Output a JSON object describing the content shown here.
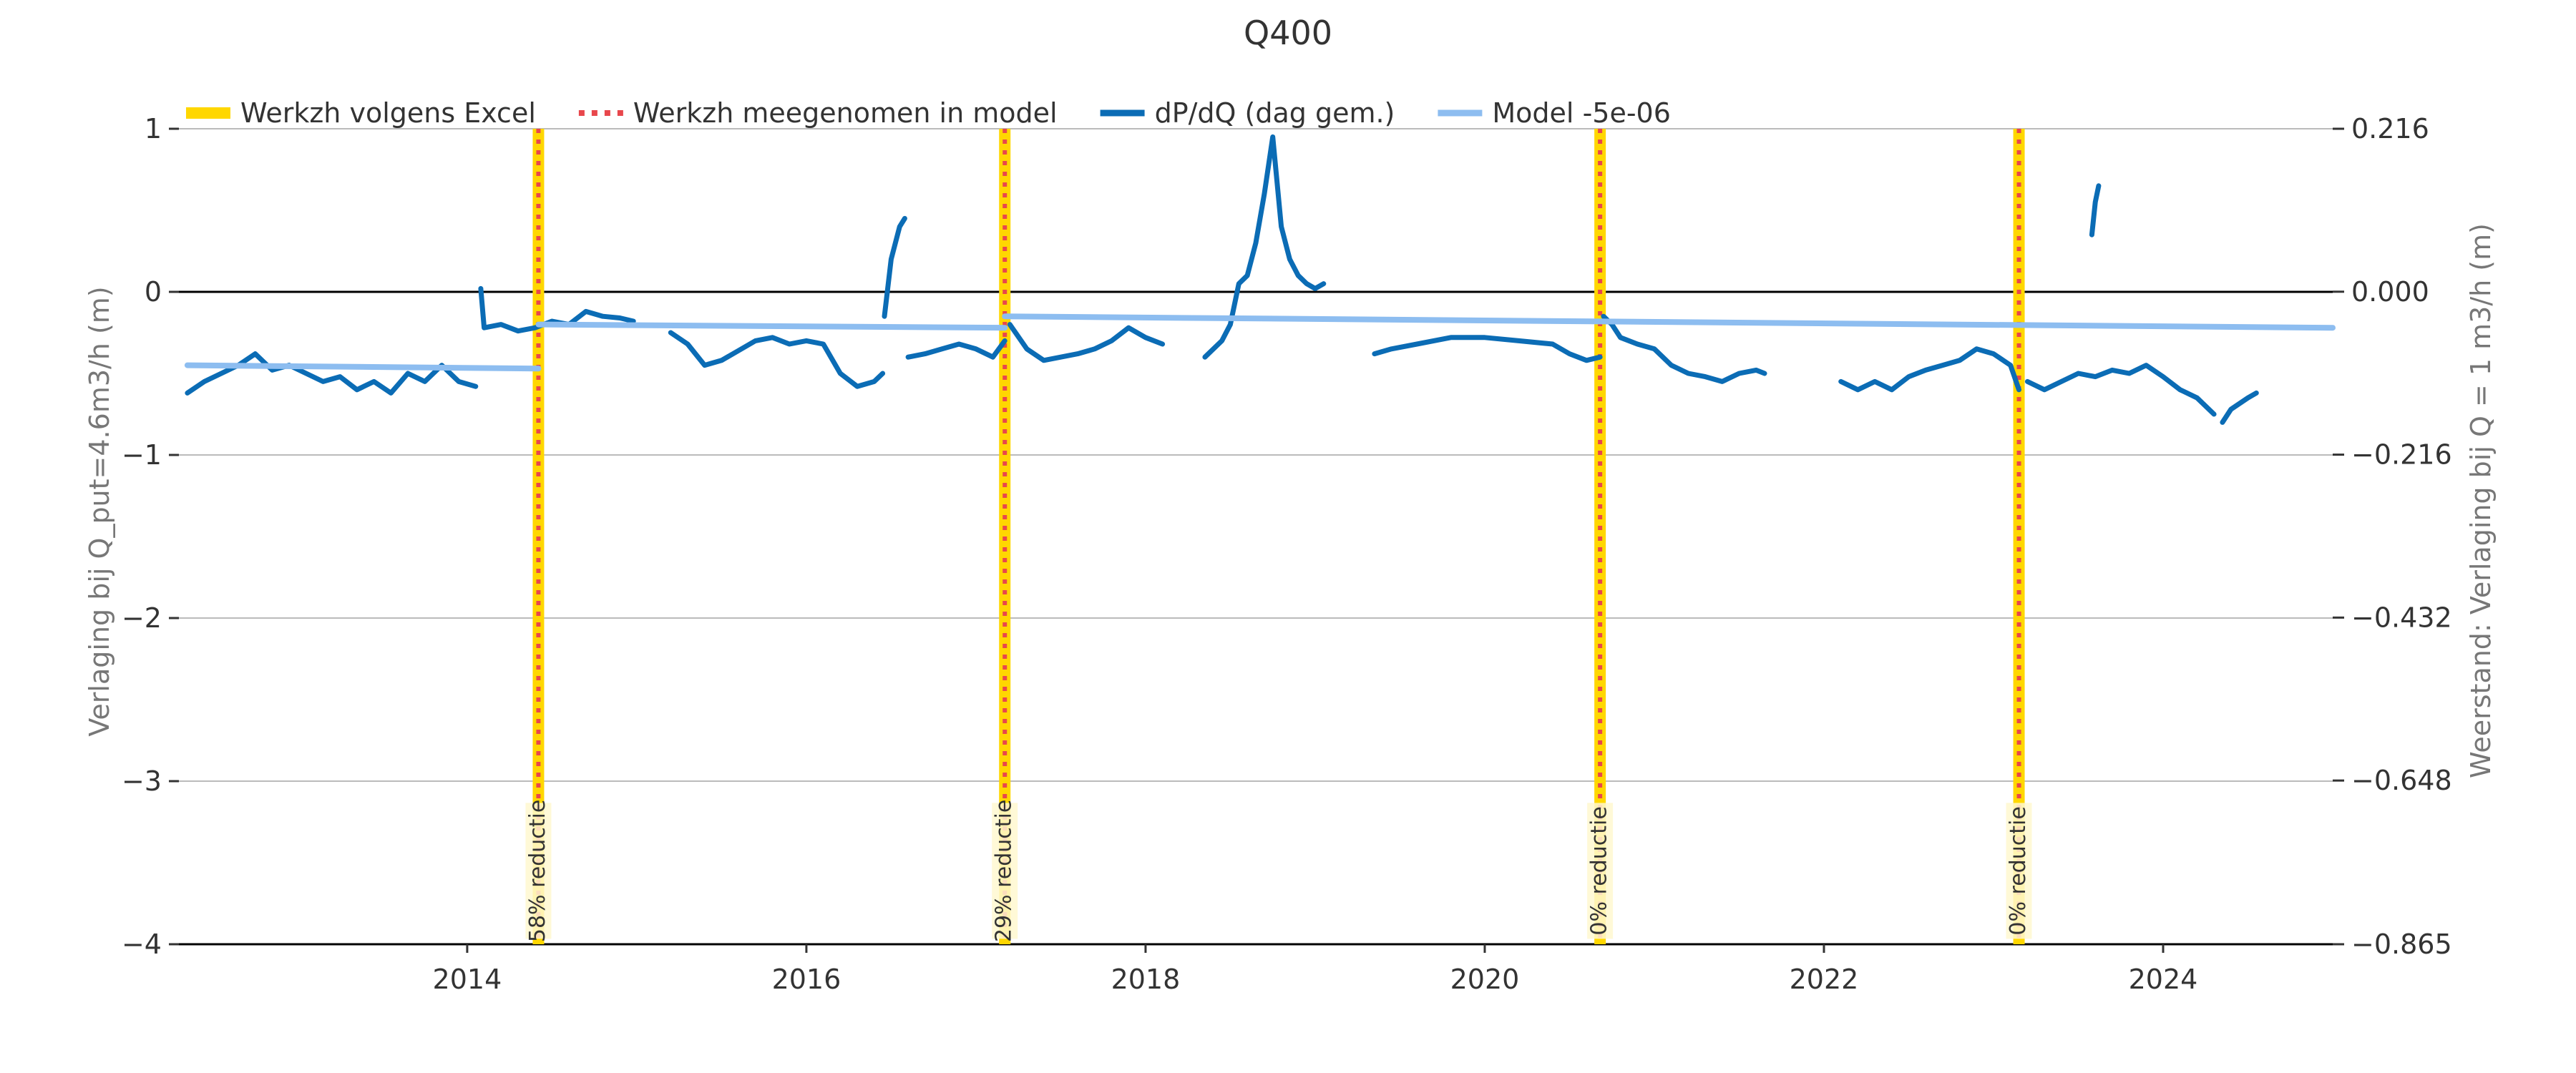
{
  "chart_data": {
    "type": "line",
    "title": "Q400",
    "ylabel": "Verlaging bij Q_put=4.6m3/h (m)",
    "y2label": "Weerstand: Verlaging bij Q = 1 m3/h (m)",
    "xlim": [
      2012.3,
      2025.0
    ],
    "ylim": [
      -4,
      1
    ],
    "y2lim": [
      -0.865,
      0.216
    ],
    "x_ticks": [
      2014,
      2016,
      2018,
      2020,
      2022,
      2024
    ],
    "x_tick_labels": [
      "2014",
      "2016",
      "2018",
      "2020",
      "2022",
      "2024"
    ],
    "y_ticks": [
      1,
      0,
      -1,
      -2,
      -3,
      -4
    ],
    "y_tick_labels": [
      "1",
      "0",
      "−1",
      "−2",
      "−3",
      "−4"
    ],
    "y2_ticks": [
      0.216,
      0.0,
      -0.216,
      -0.432,
      -0.648,
      -0.865
    ],
    "y2_tick_labels": [
      "0.216",
      "0.000",
      "−0.216",
      "−0.432",
      "−0.648",
      "−0.865"
    ],
    "grid": true,
    "legend_position": "top-left",
    "legend": [
      {
        "label": "Werkzh volgens Excel",
        "style": "thick",
        "color": "#FFD700"
      },
      {
        "label": "Werkzh meegenomen in model",
        "style": "dotted",
        "color": "#E8474C"
      },
      {
        "label": "dP/dQ (dag gem.)",
        "style": "line",
        "color": "#0B6CB5"
      },
      {
        "label": "Model -5e-06",
        "style": "line",
        "color": "#8DBDF0"
      }
    ],
    "colors": {
      "excel": "#FFD700",
      "model_event": "#E8474C",
      "series": "#0B6CB5",
      "model": "#8DBDF0",
      "zero_line": "#000000",
      "grid": "#BBBBBB"
    },
    "events": [
      {
        "x": 2014.42,
        "label": "58% reductie"
      },
      {
        "x": 2017.17,
        "label": "29% reductie"
      },
      {
        "x": 2020.68,
        "label": "0% reductie"
      },
      {
        "x": 2023.15,
        "label": "0% reductie"
      }
    ],
    "series": [
      {
        "name": "dP/dQ (dag gem.)",
        "segments": [
          {
            "x": [
              2012.35,
              2012.45,
              2012.55,
              2012.65,
              2012.75,
              2012.85,
              2012.95,
              2013.05,
              2013.15,
              2013.25,
              2013.35,
              2013.45,
              2013.55,
              2013.65,
              2013.75,
              2013.85,
              2013.95,
              2014.05
            ],
            "y": [
              -0.62,
              -0.55,
              -0.5,
              -0.45,
              -0.38,
              -0.48,
              -0.45,
              -0.5,
              -0.55,
              -0.52,
              -0.6,
              -0.55,
              -0.62,
              -0.5,
              -0.55,
              -0.45,
              -0.55,
              -0.58
            ]
          },
          {
            "x": [
              2014.08,
              2014.1,
              2014.2,
              2014.3,
              2014.4,
              2014.5,
              2014.6,
              2014.7,
              2014.8,
              2014.9,
              2014.98
            ],
            "y": [
              0.02,
              -0.22,
              -0.2,
              -0.24,
              -0.22,
              -0.18,
              -0.2,
              -0.12,
              -0.15,
              -0.16,
              -0.18
            ]
          },
          {
            "x": [
              2015.2,
              2015.3,
              2015.4,
              2015.5,
              2015.6,
              2015.7,
              2015.8,
              2015.9,
              2016.0,
              2016.1,
              2016.2,
              2016.3,
              2016.4,
              2016.45
            ],
            "y": [
              -0.25,
              -0.32,
              -0.45,
              -0.42,
              -0.36,
              -0.3,
              -0.28,
              -0.32,
              -0.3,
              -0.32,
              -0.5,
              -0.58,
              -0.55,
              -0.5
            ]
          },
          {
            "x": [
              2016.46,
              2016.5,
              2016.55,
              2016.58
            ],
            "y": [
              -0.15,
              0.2,
              0.4,
              0.45
            ]
          },
          {
            "x": [
              2016.6,
              2016.7,
              2016.8,
              2016.9,
              2017.0,
              2017.1,
              2017.17
            ],
            "y": [
              -0.4,
              -0.38,
              -0.35,
              -0.32,
              -0.35,
              -0.4,
              -0.3
            ]
          },
          {
            "x": [
              2017.2,
              2017.3,
              2017.4,
              2017.5,
              2017.6,
              2017.7,
              2017.8,
              2017.9,
              2018.0,
              2018.1
            ],
            "y": [
              -0.2,
              -0.35,
              -0.42,
              -0.4,
              -0.38,
              -0.35,
              -0.3,
              -0.22,
              -0.28,
              -0.32
            ]
          },
          {
            "x": [
              2018.35,
              2018.45,
              2018.5,
              2018.55,
              2018.6,
              2018.65,
              2018.7,
              2018.75,
              2018.8,
              2018.85,
              2018.9,
              2018.95,
              2019.0,
              2019.05
            ],
            "y": [
              -0.4,
              -0.3,
              -0.2,
              0.05,
              0.1,
              0.3,
              0.6,
              0.95,
              0.4,
              0.2,
              0.1,
              0.05,
              0.02,
              0.05
            ]
          },
          {
            "x": [
              2019.35,
              2019.45,
              2019.6,
              2019.8,
              2020.0,
              2020.2,
              2020.4,
              2020.5,
              2020.6,
              2020.68
            ],
            "y": [
              -0.38,
              -0.35,
              -0.32,
              -0.28,
              -0.28,
              -0.3,
              -0.32,
              -0.38,
              -0.42,
              -0.4
            ]
          },
          {
            "x": [
              2020.7,
              2020.75,
              2020.8,
              2020.9,
              2021.0,
              2021.1,
              2021.2,
              2021.3,
              2021.4,
              2021.5,
              2021.6,
              2021.65
            ],
            "y": [
              -0.15,
              -0.2,
              -0.28,
              -0.32,
              -0.35,
              -0.45,
              -0.5,
              -0.52,
              -0.55,
              -0.5,
              -0.48,
              -0.5
            ]
          },
          {
            "x": [
              2022.1,
              2022.2,
              2022.3,
              2022.4,
              2022.5,
              2022.6,
              2022.7,
              2022.8,
              2022.9,
              2023.0,
              2023.1,
              2023.15
            ],
            "y": [
              -0.55,
              -0.6,
              -0.55,
              -0.6,
              -0.52,
              -0.48,
              -0.45,
              -0.42,
              -0.35,
              -0.38,
              -0.45,
              -0.6
            ]
          },
          {
            "x": [
              2023.2,
              2023.3,
              2023.4,
              2023.5,
              2023.6,
              2023.7,
              2023.8,
              2023.9,
              2024.0,
              2024.1,
              2024.2,
              2024.3
            ],
            "y": [
              -0.55,
              -0.6,
              -0.55,
              -0.5,
              -0.52,
              -0.48,
              -0.5,
              -0.45,
              -0.52,
              -0.6,
              -0.65,
              -0.75
            ]
          },
          {
            "x": [
              2024.35,
              2024.4,
              2024.5,
              2024.55
            ],
            "y": [
              -0.8,
              -0.72,
              -0.65,
              -0.62
            ]
          },
          {
            "x": [
              2023.58,
              2023.6,
              2023.62
            ],
            "y": [
              0.35,
              0.55,
              0.65
            ]
          }
        ]
      },
      {
        "name": "Model -5e-06",
        "segments": [
          {
            "x": [
              2012.35,
              2014.42
            ],
            "y": [
              -0.45,
              -0.47
            ]
          },
          {
            "x": [
              2014.42,
              2017.17
            ],
            "y": [
              -0.2,
              -0.22
            ]
          },
          {
            "x": [
              2017.17,
              2025.0
            ],
            "y": [
              -0.15,
              -0.22
            ]
          }
        ]
      }
    ]
  }
}
